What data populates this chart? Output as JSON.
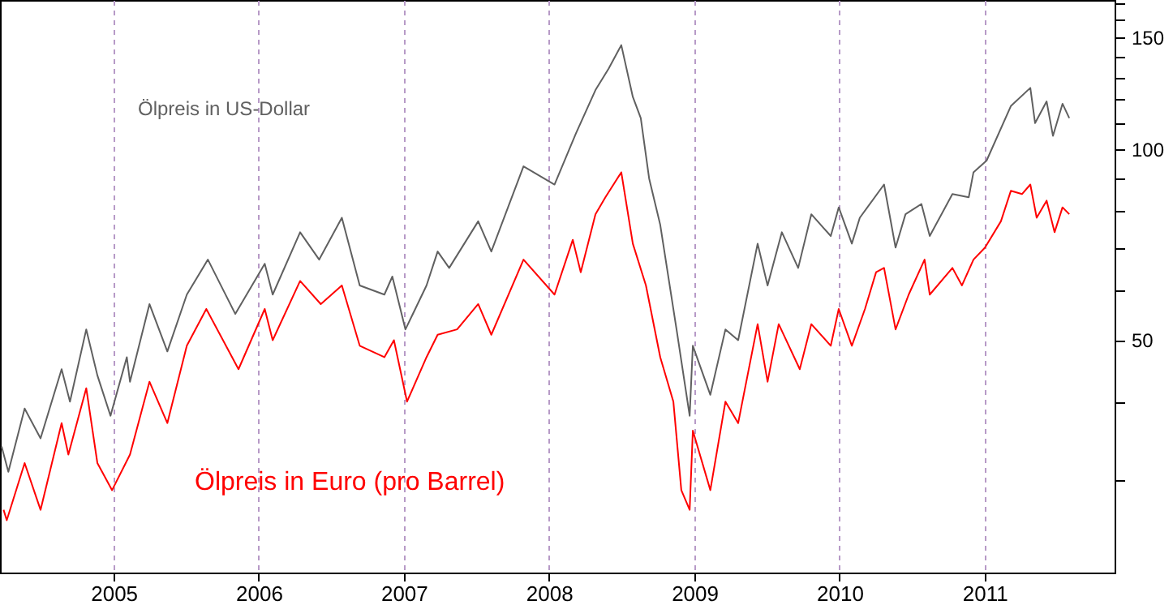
{
  "chart_data": {
    "type": "line",
    "log": "y",
    "grid": "x",
    "xlim": [
      "2004-03-21",
      "2011-11-24"
    ],
    "xticks": [
      "2005",
      "2006",
      "2007",
      "2008",
      "2009",
      "2010",
      "2011"
    ],
    "ylim": [
      21.5,
      172
    ],
    "yticks": [
      {
        "value": 30,
        "label": null
      },
      {
        "value": 40,
        "label": null
      },
      50,
      {
        "value": 60,
        "label": null
      },
      {
        "value": 70,
        "label": null
      },
      {
        "value": 80,
        "label": null
      },
      {
        "value": 90,
        "label": null
      },
      100,
      {
        "value": 110,
        "label": null
      },
      {
        "value": 120,
        "label": null
      },
      {
        "value": 130,
        "label": null
      },
      {
        "value": 140,
        "label": null
      },
      150,
      {
        "value": 160,
        "label": null
      },
      {
        "value": 170,
        "label": null
      }
    ],
    "series": [
      {
        "name": "Ölpreis in US-Dollar",
        "color": "#606060",
        "x": [
          "2004-03-25",
          "2004-04-11",
          "2004-05-22",
          "2004-07-01",
          "2004-08-23",
          "2004-09-13",
          "2004-10-24",
          "2004-11-21",
          "2004-12-24",
          "2005-02-03",
          "2005-02-11",
          "2005-04-01",
          "2005-05-16",
          "2005-07-04",
          "2005-08-26",
          "2005-11-03",
          "2006-01-16",
          "2006-02-05",
          "2006-04-15",
          "2006-06-02",
          "2006-07-29",
          "2006-09-12",
          "2006-11-13",
          "2006-12-03",
          "2007-01-05",
          "2007-02-27",
          "2007-03-27",
          "2007-04-25",
          "2007-07-07",
          "2007-08-09",
          "2007-10-29",
          "2008-01-15",
          "2008-03-09",
          "2008-04-27",
          "2008-05-30",
          "2008-07-01",
          "2008-07-30",
          "2008-08-19",
          "2008-09-09",
          "2008-10-07",
          "2008-11-17",
          "2008-12-20",
          "2008-12-28",
          "2009-02-10",
          "2009-03-20",
          "2009-04-21",
          "2009-06-09",
          "2009-07-04",
          "2009-08-09",
          "2009-09-19",
          "2009-10-22",
          "2009-12-10",
          "2009-12-30",
          "2010-02-01",
          "2010-02-21",
          "2010-04-23",
          "2010-05-22",
          "2010-06-16",
          "2010-07-26",
          "2010-08-16",
          "2010-10-12",
          "2010-11-22",
          "2010-12-04",
          "2011-01-06",
          "2011-03-08",
          "2011-04-26",
          "2011-05-08",
          "2011-06-06",
          "2011-06-22",
          "2011-07-16",
          "2011-08-02"
        ],
        "values": [
          34,
          31,
          39,
          35,
          45,
          40,
          52,
          44,
          38,
          47,
          43,
          57,
          48,
          59,
          67,
          55,
          66,
          59,
          74,
          67,
          78,
          61,
          59,
          63,
          52,
          61,
          69,
          65,
          77,
          69,
          94,
          88,
          106,
          124,
          134,
          146,
          121,
          112,
          90,
          76,
          52,
          38,
          49,
          41,
          52,
          50,
          71,
          61,
          74,
          65,
          79,
          73,
          81,
          71,
          78,
          88,
          70,
          79,
          82,
          73,
          85,
          84,
          92,
          96,
          117,
          125,
          110,
          119,
          105,
          118,
          112
        ]
      },
      {
        "name": "Ölpreis in Euro (pro Barrel)",
        "color": "#ff0000",
        "x": [
          "2004-03-30",
          "2004-04-07",
          "2004-05-22",
          "2004-07-01",
          "2004-08-23",
          "2004-09-09",
          "2004-10-24",
          "2004-11-21",
          "2004-12-28",
          "2005-02-11",
          "2005-04-01",
          "2005-05-16",
          "2005-07-04",
          "2005-08-22",
          "2005-11-11",
          "2006-01-16",
          "2006-02-05",
          "2006-04-15",
          "2006-06-06",
          "2006-07-29",
          "2006-09-12",
          "2006-11-13",
          "2006-12-07",
          "2007-01-09",
          "2007-02-27",
          "2007-03-27",
          "2007-05-15",
          "2007-07-07",
          "2007-08-09",
          "2007-10-29",
          "2008-01-15",
          "2008-03-01",
          "2008-03-21",
          "2008-04-27",
          "2008-05-22",
          "2008-07-01",
          "2008-07-30",
          "2008-09-01",
          "2008-10-07",
          "2008-11-09",
          "2008-11-29",
          "2008-12-20",
          "2008-12-28",
          "2009-02-10",
          "2009-03-20",
          "2009-04-21",
          "2009-06-09",
          "2009-07-04",
          "2009-08-01",
          "2009-09-23",
          "2009-10-22",
          "2009-12-10",
          "2009-12-30",
          "2010-02-01",
          "2010-03-06",
          "2010-04-03",
          "2010-04-23",
          "2010-05-22",
          "2010-06-24",
          "2010-08-03",
          "2010-08-16",
          "2010-10-12",
          "2010-11-05",
          "2010-12-04",
          "2011-01-02",
          "2011-02-11",
          "2011-03-08",
          "2011-04-05",
          "2011-04-26",
          "2011-05-12",
          "2011-06-06",
          "2011-06-26",
          "2011-07-16",
          "2011-08-02"
        ],
        "values": [
          27,
          26,
          32,
          27,
          37,
          33,
          42,
          32,
          29,
          33,
          43,
          37,
          49,
          56,
          45,
          56,
          50,
          62,
          57,
          61,
          49,
          47,
          50,
          40,
          47,
          51,
          52,
          57,
          51,
          67,
          59,
          72,
          64,
          79,
          84,
          92,
          71,
          61,
          47,
          40,
          29,
          27,
          36,
          29,
          40,
          37,
          53,
          43,
          53,
          45,
          53,
          49,
          56,
          49,
          56,
          64,
          65,
          52,
          59,
          67,
          59,
          65,
          61,
          67,
          70,
          77,
          86,
          85,
          88,
          78,
          83,
          74,
          81,
          79
        ]
      }
    ]
  }
}
